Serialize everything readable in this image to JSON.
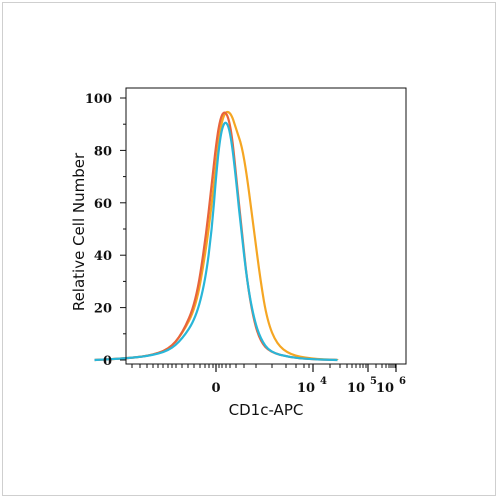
{
  "chart_data": {
    "type": "area",
    "title": "",
    "xlabel": "CD1c-APC",
    "ylabel": "Relative Cell Number",
    "x_scale": "logicle",
    "ylim": [
      0,
      100
    ],
    "yticks": [
      0,
      20,
      40,
      60,
      80,
      100
    ],
    "xticks": [
      {
        "base": "0",
        "exp": ""
      },
      {
        "base": "10",
        "exp": "4"
      },
      {
        "base": "10",
        "exp": "5"
      },
      {
        "base": "10",
        "exp": "6"
      }
    ],
    "grid": false,
    "legend": "none",
    "series": [
      {
        "color": "#f5a623",
        "points": [
          [
            -0.9,
            0
          ],
          [
            -0.7,
            0.5
          ],
          [
            -0.5,
            1.5
          ],
          [
            -0.35,
            4
          ],
          [
            -0.25,
            10
          ],
          [
            -0.15,
            20
          ],
          [
            -0.08,
            40
          ],
          [
            -0.03,
            60
          ],
          [
            0.0,
            75
          ],
          [
            0.03,
            88
          ],
          [
            0.06,
            94
          ],
          [
            0.09,
            95
          ],
          [
            0.12,
            93
          ],
          [
            0.15,
            88
          ],
          [
            0.19,
            82
          ],
          [
            0.23,
            70
          ],
          [
            0.28,
            50
          ],
          [
            0.33,
            30
          ],
          [
            0.38,
            15
          ],
          [
            0.45,
            6
          ],
          [
            0.55,
            2
          ],
          [
            0.7,
            0.5
          ],
          [
            0.9,
            0
          ]
        ]
      },
      {
        "color": "#e8643c",
        "points": [
          [
            -0.9,
            0
          ],
          [
            -0.7,
            0.5
          ],
          [
            -0.5,
            1.5
          ],
          [
            -0.35,
            4
          ],
          [
            -0.25,
            10
          ],
          [
            -0.15,
            22
          ],
          [
            -0.08,
            45
          ],
          [
            -0.03,
            68
          ],
          [
            0.0,
            82
          ],
          [
            0.03,
            92
          ],
          [
            0.06,
            95
          ],
          [
            0.09,
            93
          ],
          [
            0.12,
            85
          ],
          [
            0.15,
            70
          ],
          [
            0.19,
            50
          ],
          [
            0.23,
            30
          ],
          [
            0.28,
            15
          ],
          [
            0.33,
            7
          ],
          [
            0.4,
            3
          ],
          [
            0.55,
            1
          ],
          [
            0.7,
            0.3
          ],
          [
            0.9,
            0
          ]
        ]
      },
      {
        "color": "#29b6d8",
        "points": [
          [
            -0.9,
            0
          ],
          [
            -0.7,
            0.5
          ],
          [
            -0.5,
            1.5
          ],
          [
            -0.35,
            3.5
          ],
          [
            -0.25,
            8
          ],
          [
            -0.15,
            16
          ],
          [
            -0.08,
            30
          ],
          [
            -0.03,
            50
          ],
          [
            0.0,
            70
          ],
          [
            0.03,
            85
          ],
          [
            0.06,
            91
          ],
          [
            0.09,
            90
          ],
          [
            0.12,
            82
          ],
          [
            0.15,
            68
          ],
          [
            0.19,
            48
          ],
          [
            0.23,
            30
          ],
          [
            0.28,
            16
          ],
          [
            0.33,
            8
          ],
          [
            0.4,
            3
          ],
          [
            0.55,
            1
          ],
          [
            0.7,
            0.3
          ],
          [
            0.9,
            0
          ]
        ]
      }
    ]
  }
}
